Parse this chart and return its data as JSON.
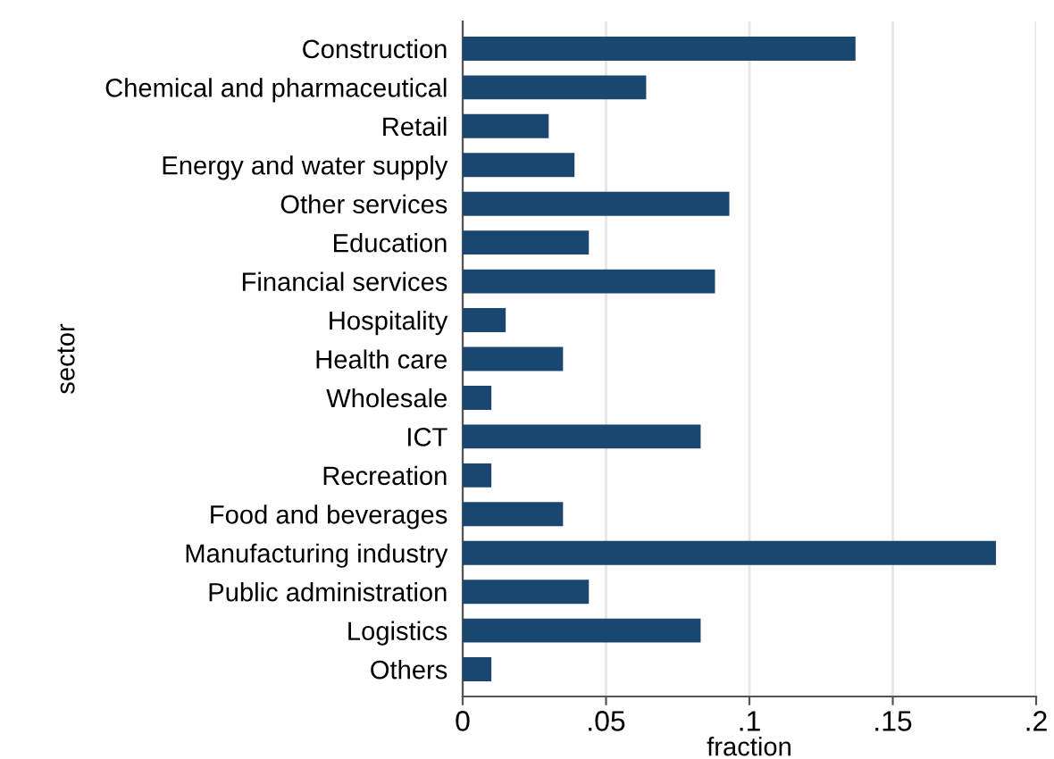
{
  "chart_data": {
    "type": "bar",
    "orientation": "horizontal",
    "xlabel": "fraction",
    "ylabel": "sector",
    "categories": [
      "Construction",
      "Chemical and pharmaceutical",
      "Retail",
      "Energy and water supply",
      "Other services",
      "Education",
      "Financial services",
      "Hospitality",
      "Health care",
      "Wholesale",
      "ICT",
      "Recreation",
      "Food and beverages",
      "Manufacturing industry",
      "Public administration",
      "Logistics",
      "Others"
    ],
    "values": [
      0.137,
      0.064,
      0.03,
      0.039,
      0.093,
      0.044,
      0.088,
      0.015,
      0.035,
      0.01,
      0.083,
      0.01,
      0.035,
      0.186,
      0.044,
      0.083,
      0.01
    ],
    "color": "#1a476f",
    "xlim": [
      0,
      0.2
    ],
    "xticks": [
      {
        "value": 0,
        "label": "0"
      },
      {
        "value": 0.05,
        "label": ".05"
      },
      {
        "value": 0.1,
        "label": ".1"
      },
      {
        "value": 0.15,
        "label": ".15"
      },
      {
        "value": 0.2,
        "label": ".2"
      }
    ],
    "grid": "x",
    "legend": false
  }
}
